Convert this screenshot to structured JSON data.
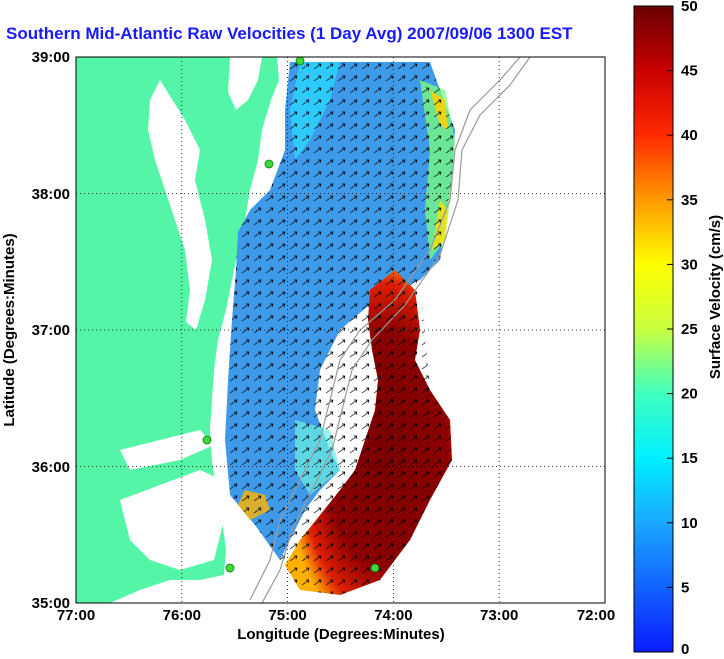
{
  "title": "Southern Mid-Atlantic Raw Velocities (1 Day Avg) 2007/09/06 1300 EST",
  "map": {
    "xlabel": "Longitude (Degrees:Minutes)",
    "ylabel": "Latitude (Degrees:Minutes)",
    "x_ticks": [
      "77:00",
      "76:00",
      "75:00",
      "74:00",
      "73:00",
      "72:00"
    ],
    "y_ticks": [
      "39:00",
      "38:00",
      "37:00",
      "36:00",
      "35:00"
    ],
    "grid": "dotted"
  },
  "colorbar": {
    "label": "Surface Velocity (cm/s)",
    "ticks": [
      "0",
      "5",
      "10",
      "15",
      "20",
      "25",
      "30",
      "35",
      "40",
      "45",
      "50"
    ]
  },
  "colors": {
    "land": "#55f5a8",
    "title": "#1a1aff",
    "station": "#3cd83c"
  }
}
